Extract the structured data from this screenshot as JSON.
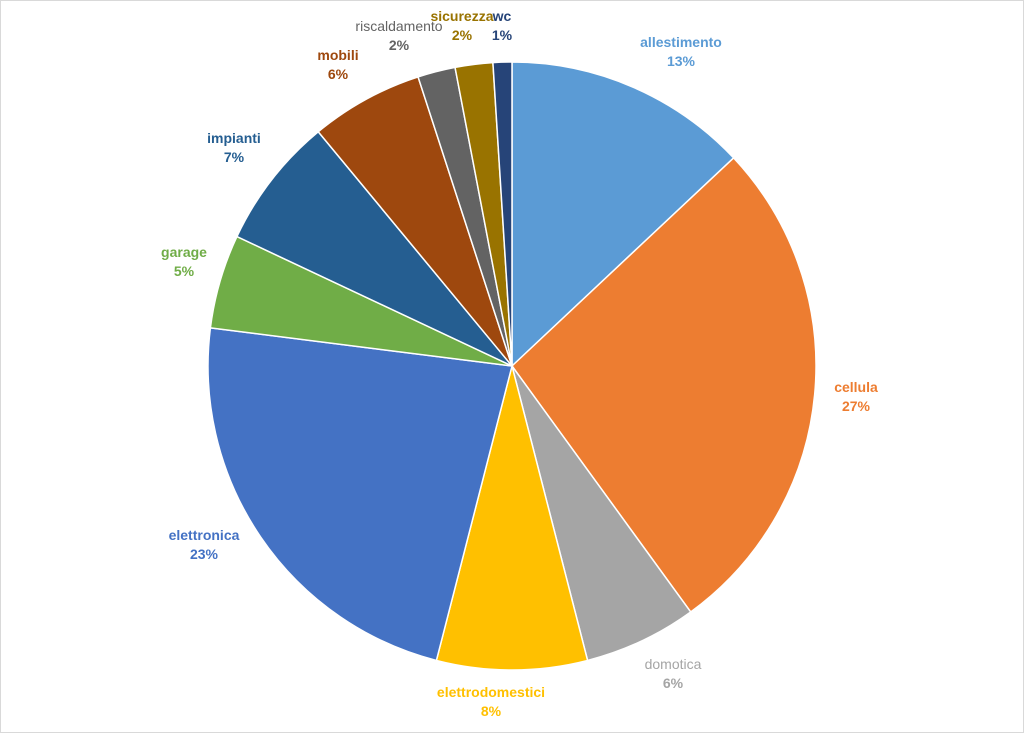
{
  "chart_data": {
    "type": "pie",
    "title": "",
    "legend": "none",
    "slices": [
      {
        "label": "allestimento",
        "value": 13,
        "display": "13%",
        "color": "#5B9BD5",
        "label_color": "#5B9BD5",
        "bold": true
      },
      {
        "label": "cellula",
        "value": 27,
        "display": "27%",
        "color": "#ED7D31",
        "label_color": "#ED7D31",
        "bold": true
      },
      {
        "label": "domotica",
        "value": 6,
        "display": "6%",
        "color": "#A5A5A5",
        "label_color": "#A5A5A5",
        "bold": false
      },
      {
        "label": "elettrodomestici",
        "value": 8,
        "display": "8%",
        "color": "#FFC000",
        "label_color": "#FFC000",
        "bold": true
      },
      {
        "label": "elettronica",
        "value": 23,
        "display": "23%",
        "color": "#4472C4",
        "label_color": "#4472C4",
        "bold": true
      },
      {
        "label": "garage",
        "value": 5,
        "display": "5%",
        "color": "#70AD47",
        "label_color": "#70AD47",
        "bold": true
      },
      {
        "label": "impianti",
        "value": 7,
        "display": "7%",
        "color": "#255E91",
        "label_color": "#255E91",
        "bold": true
      },
      {
        "label": "mobili",
        "value": 6,
        "display": "6%",
        "color": "#9E480E",
        "label_color": "#9E480E",
        "bold": true
      },
      {
        "label": "riscaldamento",
        "value": 2,
        "display": "2%",
        "color": "#636363",
        "label_color": "#636363",
        "bold": false
      },
      {
        "label": "sicurezza",
        "value": 2,
        "display": "2%",
        "color": "#997300",
        "label_color": "#997300",
        "bold": true
      },
      {
        "label": "wc",
        "value": 1,
        "display": "1%",
        "color": "#264478",
        "label_color": "#264478",
        "bold": true
      }
    ]
  }
}
